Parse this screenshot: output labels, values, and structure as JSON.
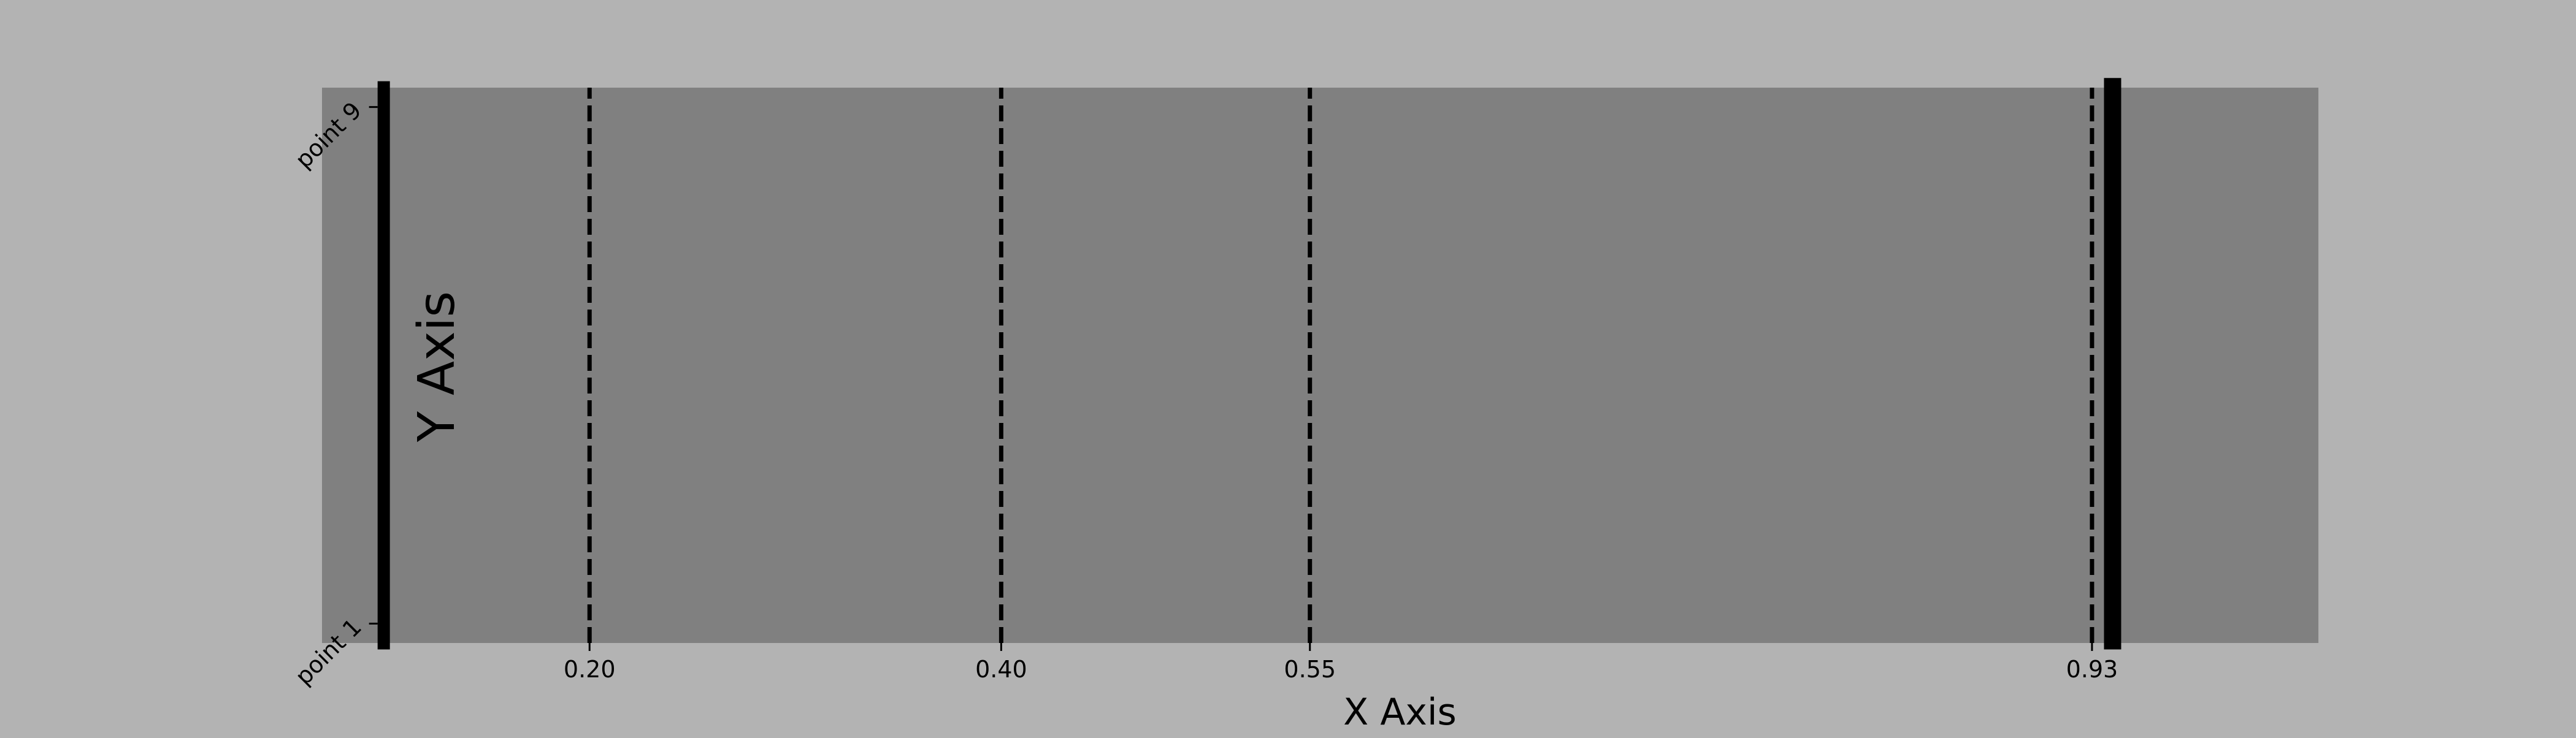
{
  "chart_data": {
    "type": "line",
    "title": "",
    "xlabel": "X Axis",
    "ylabel": "Y Axis",
    "xlim": [
      0.07,
      1.04
    ],
    "ylim": [
      0.7,
      9.3
    ],
    "x_ticks": [
      0.2,
      0.4,
      0.55,
      0.93
    ],
    "x_tick_labels": [
      "0.20",
      "0.40",
      "0.55",
      "0.93"
    ],
    "y_ticks": [
      1,
      9
    ],
    "y_tick_labels": [
      "point 1",
      "point 9"
    ],
    "series": [
      {
        "style": "solid-thick",
        "x": [
          0.1,
          0.1
        ],
        "y": [
          0.6,
          9.4
        ]
      },
      {
        "style": "dashed",
        "x": [
          0.2,
          0.2
        ],
        "y": [
          0.7,
          9.3
        ]
      },
      {
        "style": "dashed",
        "x": [
          0.4,
          0.4
        ],
        "y": [
          0.7,
          9.3
        ]
      },
      {
        "style": "dashed",
        "x": [
          0.55,
          0.55
        ],
        "y": [
          0.7,
          9.3
        ]
      },
      {
        "style": "dashed",
        "x": [
          0.93,
          0.93
        ],
        "y": [
          0.7,
          9.3
        ]
      },
      {
        "style": "solid-thick",
        "x": [
          0.94,
          0.94
        ],
        "y": [
          0.6,
          9.45
        ]
      }
    ],
    "grid": false,
    "legend": "none",
    "colors": {
      "figure_background": "#b3b3b3",
      "axes_background": "#808080",
      "lines": "#000000"
    }
  }
}
